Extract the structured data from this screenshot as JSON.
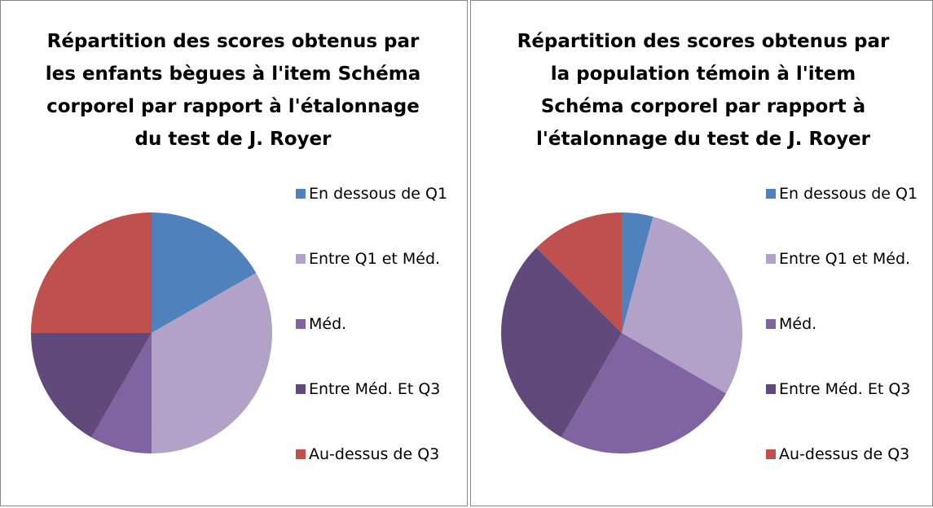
{
  "chart_data": [
    {
      "type": "pie",
      "title": "Répartition des scores obtenus par les enfants bègues à l'item Schéma corporel par rapport à l'étalonnage du test de J. Royer",
      "categories": [
        "En dessous de Q1",
        "Entre Q1 et Méd.",
        "Méd.",
        "Entre Méd. Et Q3",
        "Au-dessus de Q3"
      ],
      "values": [
        16.7,
        33.3,
        8.3,
        16.7,
        25
      ],
      "colors": [
        "#4f81bd",
        "#b3a2c7",
        "#8064a2",
        "#604a7b",
        "#c0504d"
      ],
      "legend": "right"
    },
    {
      "type": "pie",
      "title": "Répartition des scores obtenus par la population  témoin à l'item Schéma corporel par rapport à l'étalonnage du test de J. Royer",
      "categories": [
        "En dessous de Q1",
        "Entre Q1 et Méd.",
        "Méd.",
        "Entre Méd. Et Q3",
        "Au-dessus de Q3"
      ],
      "values": [
        4.2,
        29.2,
        25,
        29.2,
        12.5
      ],
      "colors": [
        "#4f81bd",
        "#b3a2c7",
        "#8064a2",
        "#604a7b",
        "#c0504d"
      ],
      "legend": "right"
    }
  ]
}
